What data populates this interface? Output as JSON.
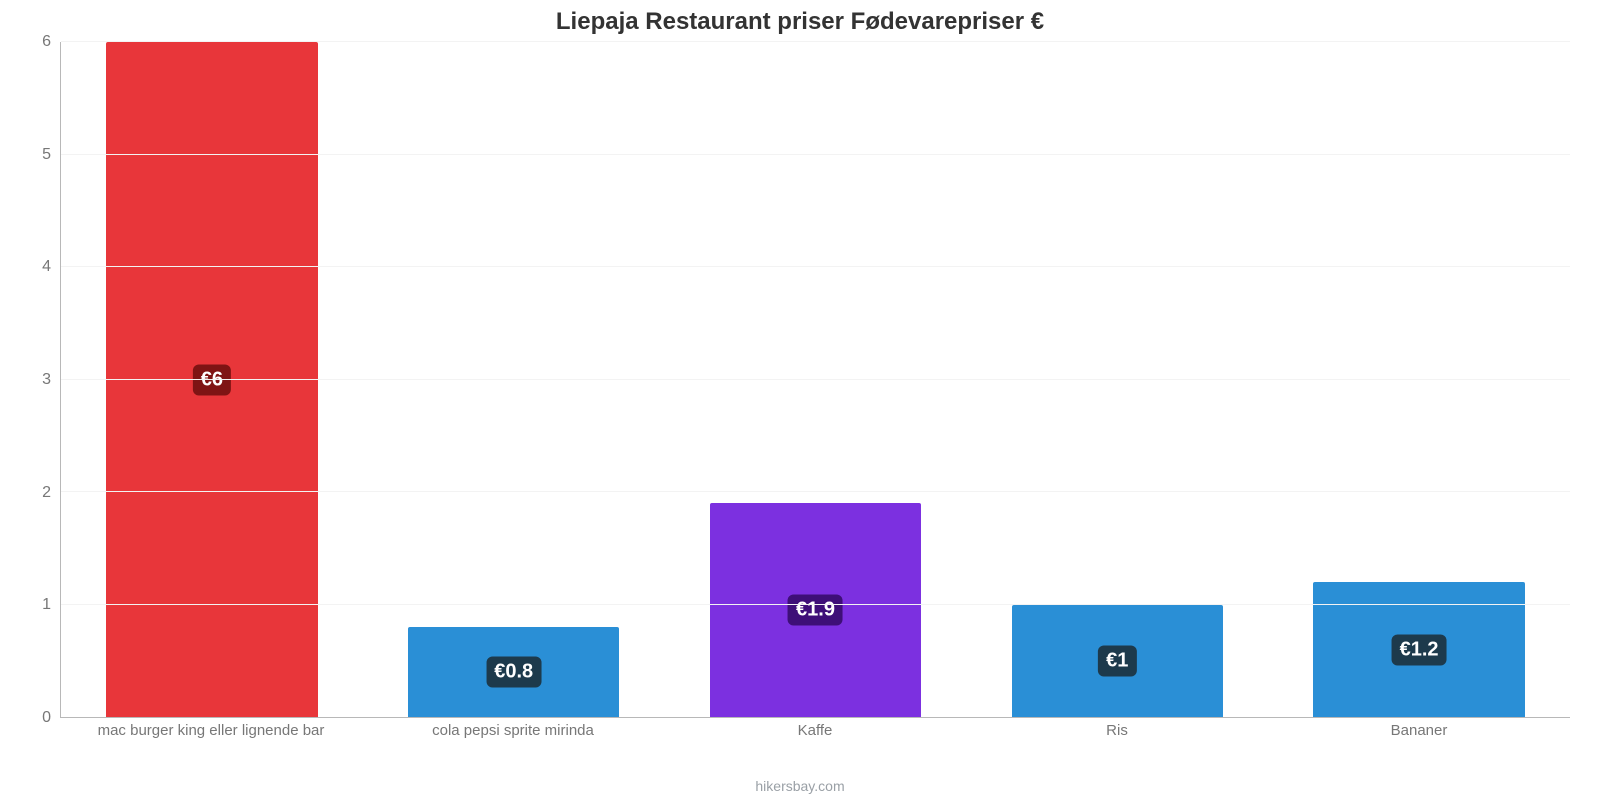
{
  "chart": {
    "type": "bar",
    "title": "Liepaja Restaurant priser Fødevarepriser €",
    "title_fontsize": 24,
    "title_color": "#333333",
    "attribution": "hikersbay.com",
    "attribution_color": "#9aa0a6",
    "attribution_fontsize": 14,
    "background_color": "#ffffff",
    "grid_color": "#f3f3f3",
    "axis_line_color": "#b8b8b8",
    "y": {
      "min": 0,
      "max": 6,
      "ticks": [
        0,
        1,
        2,
        3,
        4,
        5,
        6
      ],
      "tick_color": "#777777",
      "tick_fontsize": 16
    },
    "x": {
      "tick_color": "#777777",
      "tick_fontsize": 15
    },
    "bar_width_pct": 70,
    "value_label": {
      "badge_bg": "#1d3a4c",
      "badge_text_color": "#ffffff",
      "fontsize": 20,
      "radius": 6
    },
    "categories": [
      "mac burger king eller lignende bar",
      "cola pepsi sprite mirinda",
      "Kaffe",
      "Ris",
      "Bananer"
    ],
    "values": [
      6,
      0.8,
      1.9,
      1,
      1.2
    ],
    "value_labels": [
      "€6",
      "€0.8",
      "€1.9",
      "€1",
      "€1.2"
    ],
    "bar_colors": [
      "#e8363a",
      "#2a8fd6",
      "#7c30e0",
      "#2a8fd6",
      "#2a8fd6"
    ],
    "value_badge_bg": [
      "#7f1414",
      "#1d3a4c",
      "#3e0f78",
      "#1d3a4c",
      "#1d3a4c"
    ]
  }
}
